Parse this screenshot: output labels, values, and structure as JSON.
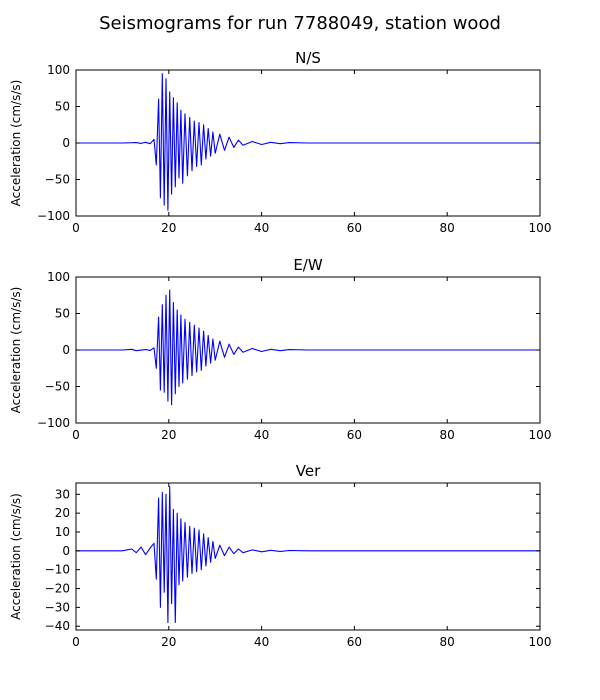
{
  "figure_title": "Seismograms for run 7788049, station wood",
  "colors": {
    "trace": "#0000ff",
    "axes": "#000000",
    "background": "#ffffff"
  },
  "chart_data": [
    {
      "type": "line",
      "title": "N/S",
      "xlabel": "",
      "ylabel": "Acceleration (cm/s/s)",
      "xlim": [
        0,
        100
      ],
      "ylim": [
        -100,
        100
      ],
      "xticks": [
        "0",
        "20",
        "40",
        "60",
        "80",
        "100"
      ],
      "yticks": [
        "100",
        "50",
        "0",
        "−50",
        "−100"
      ],
      "grid": false,
      "series": [
        {
          "color": "#0000ff",
          "x": [
            0,
            10,
            13,
            14,
            15,
            16,
            16.8,
            17.3,
            17.8,
            18.2,
            18.6,
            19,
            19.4,
            19.8,
            20.2,
            20.6,
            21,
            21.4,
            21.8,
            22.2,
            22.6,
            23,
            23.5,
            24,
            24.5,
            25,
            25.5,
            26,
            26.5,
            27,
            27.5,
            28,
            28.5,
            29,
            29.5,
            30,
            31,
            32,
            33,
            34,
            35,
            36,
            38,
            40,
            42,
            44,
            46,
            50,
            100
          ],
          "y": [
            0,
            0,
            0.5,
            -0.5,
            1,
            -1,
            5,
            -30,
            60,
            -75,
            95,
            -85,
            88,
            -92,
            70,
            -70,
            62,
            -60,
            55,
            -48,
            45,
            -55,
            40,
            -45,
            35,
            -38,
            30,
            -32,
            28,
            -30,
            25,
            -22,
            20,
            -18,
            15,
            -14,
            12,
            -10,
            8,
            -6,
            4,
            -3,
            2,
            -2,
            1,
            -1,
            0.5,
            0,
            0
          ]
        }
      ]
    },
    {
      "type": "line",
      "title": "E/W",
      "xlabel": "",
      "ylabel": "Acceleration (cm/s/s)",
      "xlim": [
        0,
        100
      ],
      "ylim": [
        -100,
        100
      ],
      "xticks": [
        "0",
        "20",
        "40",
        "60",
        "80",
        "100"
      ],
      "yticks": [
        "100",
        "50",
        "0",
        "−50",
        "−100"
      ],
      "grid": false,
      "series": [
        {
          "color": "#0000ff",
          "x": [
            0,
            10,
            12,
            13,
            15,
            16,
            16.8,
            17.3,
            17.8,
            18.2,
            18.6,
            19,
            19.4,
            19.8,
            20.2,
            20.6,
            21,
            21.4,
            21.8,
            22.2,
            22.6,
            23,
            23.5,
            24,
            24.5,
            25,
            25.5,
            26,
            26.5,
            27,
            27.5,
            28,
            28.5,
            29,
            29.5,
            30,
            31,
            32,
            33,
            34,
            35,
            36,
            38,
            40,
            42,
            44,
            46,
            50,
            100
          ],
          "y": [
            0,
            0,
            1,
            -1,
            0.5,
            -0.5,
            3,
            -25,
            45,
            -55,
            62,
            -58,
            75,
            -70,
            82,
            -75,
            65,
            -60,
            55,
            -50,
            48,
            -45,
            42,
            -40,
            38,
            -35,
            34,
            -30,
            30,
            -28,
            26,
            -22,
            20,
            -18,
            15,
            -14,
            12,
            -10,
            8,
            -6,
            4,
            -3,
            2,
            -2,
            1,
            -1,
            0.5,
            0,
            0
          ]
        }
      ]
    },
    {
      "type": "line",
      "title": "Ver",
      "xlabel": "",
      "ylabel": "Acceleration (cm/s/s)",
      "xlim": [
        0,
        100
      ],
      "ylim": [
        -42,
        36
      ],
      "xticks": [
        "0",
        "20",
        "40",
        "60",
        "80",
        "100"
      ],
      "yticks": [
        "30",
        "20",
        "10",
        "0",
        "−10",
        "−20",
        "−30",
        "−40"
      ],
      "grid": false,
      "series": [
        {
          "color": "#0000ff",
          "x": [
            0,
            10,
            12,
            13,
            14,
            15,
            16,
            16.8,
            17.3,
            17.8,
            18.2,
            18.6,
            19,
            19.4,
            19.8,
            20.2,
            20.6,
            21,
            21.4,
            21.8,
            22.2,
            22.6,
            23,
            23.5,
            24,
            24.5,
            25,
            25.5,
            26,
            26.5,
            27,
            27.5,
            28,
            28.5,
            29,
            29.5,
            30,
            31,
            32,
            33,
            34,
            35,
            36,
            38,
            40,
            42,
            44,
            46,
            50,
            100
          ],
          "y": [
            0,
            0,
            1,
            -1,
            2,
            -2,
            1.5,
            4,
            -15,
            28,
            -30,
            31,
            -22,
            30,
            -38,
            34,
            -28,
            22,
            -38,
            20,
            -18,
            17,
            -16,
            15,
            -14,
            13,
            -12,
            12,
            -11,
            11,
            -10,
            9,
            -8,
            7,
            -6,
            5,
            -4,
            3,
            -2.5,
            2,
            -1.5,
            1,
            -1,
            0.5,
            -0.5,
            0.3,
            -0.3,
            0.2,
            0,
            0
          ]
        }
      ]
    }
  ]
}
